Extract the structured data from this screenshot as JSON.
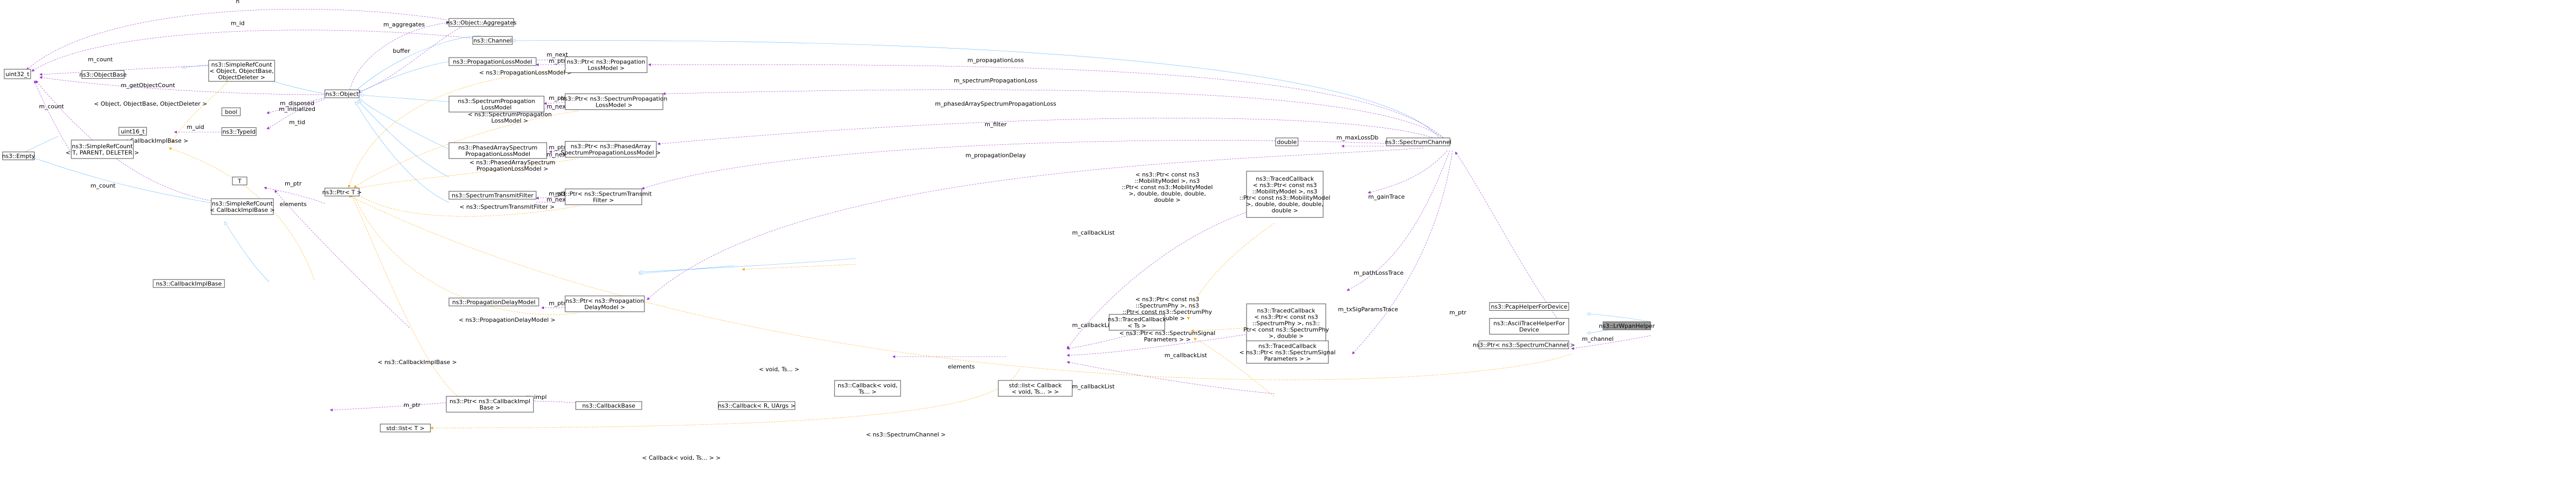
{
  "nodes": {
    "uint32": [
      "uint32_t"
    ],
    "objectbase": [
      "ns3::ObjectBase"
    ],
    "simplerefcount_obj": [
      "ns3::SimpleRefCount",
      "< Object, ObjectBase,",
      "ObjectDeleter >"
    ],
    "empty": [
      "ns3::Empty"
    ],
    "simplerefcount_t": [
      "ns3::SimpleRefCount",
      "< T, PARENT, DELETER >"
    ],
    "uint16": [
      "uint16_t"
    ],
    "simplerefcount_cb": [
      "ns3::SimpleRefCount",
      "< CallbackImplBase >"
    ],
    "t": [
      "T"
    ],
    "callbackimplbase": [
      "ns3::CallbackImplBase"
    ],
    "bool": [
      "bool"
    ],
    "typeid": [
      "ns3::TypeId"
    ],
    "object": [
      "ns3::Object"
    ],
    "ptr_t": [
      "ns3::Ptr< T >"
    ],
    "stdlist_t": [
      "std::list< T >"
    ],
    "aggregates": [
      "ns3::Object::Aggregates"
    ],
    "channel": [
      "ns3::Channel"
    ],
    "proplossmodel": [
      "ns3::PropagationLossModel"
    ],
    "specproplossmodel": [
      "ns3::SpectrumPropagation",
      "LossModel"
    ],
    "phasedarray": [
      "ns3::PhasedArraySpectrum",
      "PropagationLossModel"
    ],
    "spectx": [
      "ns3::SpectrumTransmitFilter"
    ],
    "propdelay": [
      "ns3::PropagationDelayModel"
    ],
    "ptr_cbimpl": [
      "ns3::Ptr< ns3::CallbackImpl",
      "Base >"
    ],
    "ptr_proploss": [
      "ns3::Ptr< ns3::Propagation",
      "LossModel >"
    ],
    "ptr_specprop": [
      "ns3::Ptr< ns3::SpectrumPropagation",
      "LossModel >"
    ],
    "ptr_phased": [
      "ns3::Ptr< ns3::PhasedArray",
      "SpectrumPropagationLossModel >"
    ],
    "ptr_spectx": [
      "ns3::Ptr< ns3::SpectrumTransmit",
      "Filter >"
    ],
    "ptr_propdelay": [
      "ns3::Ptr< ns3::Propagation",
      "DelayModel >"
    ],
    "callbackbase": [
      "ns3::CallbackBase"
    ],
    "callback_r": [
      "ns3::Callback< R, UArgs >"
    ],
    "callback_void": [
      "ns3::Callback< void,",
      "Ts... >"
    ],
    "stdlist_cb": [
      "std::list< Callback",
      "< void, Ts... > >"
    ],
    "tracedcallback": [
      "ns3::TracedCallback",
      "< Ts >"
    ],
    "tc_mobility": [
      "ns3::TracedCallback",
      "< ns3::Ptr< const ns3",
      "::MobilityModel >, ns3",
      "::Ptr< const ns3::MobilityModel",
      ">, double, double, double,",
      "double >"
    ],
    "tc_phy": [
      "ns3::TracedCallback",
      "< ns3::Ptr< const ns3",
      "::SpectrumPhy >, ns3::",
      "Ptr< const ns3::SpectrumPhy",
      ">, double >"
    ],
    "tc_signal": [
      "ns3::TracedCallback",
      "< ns3::Ptr< ns3::SpectrumSignal",
      "Parameters > >"
    ],
    "double": [
      "double"
    ],
    "spectrumchannel": [
      "ns3::SpectrumChannel"
    ],
    "pcaphelper": [
      "ns3::PcapHelperForDevice"
    ],
    "asciihelper": [
      "ns3::AsciiTraceHelperFor",
      "Device"
    ],
    "ptr_specchannel": [
      "ns3::Ptr< ns3::SpectrumChannel >"
    ],
    "wpanhelper": [
      "ns3::LrWpanHelper"
    ]
  },
  "edges": {
    "n": "n",
    "m_id": "m_id",
    "m_aggregates": "m_aggregates",
    "buffer": "buffer",
    "m_count_a": "m_count",
    "m_getObjectCount": "m_getObjectCount",
    "m_count_b": "m_count",
    "m_count_c": "m_count",
    "object_objectbase": "< Object, ObjectBase, ObjectDeleter >",
    "m_disposed": "m_disposed",
    "m_initialized": "m_initialized",
    "m_tid": "m_tid",
    "m_uid": "m_uid",
    "callbackimplbase_tmpl": "< CallbackImplBase >",
    "m_ptr_t": "m_ptr",
    "elements_t": "elements",
    "m_next_1": "m_next",
    "m_ptr_1": "m_ptr",
    "proploss_tmpl": "< ns3::PropagationLossModel >",
    "m_ptr_2": "m_ptr",
    "m_next_2": "m_next",
    "specprop_tmpl": "< ns3::SpectrumPropagation\nLossModel >",
    "m_ptr_3": "m_ptr",
    "m_next_3": "m_next",
    "phased_tmpl": "< ns3::PhasedArraySpectrum\nPropagationLossModel >",
    "m_ptr_4": "m_ptr",
    "m_next_4": "m_next",
    "spectx_tmpl": "< ns3::SpectrumTransmitFilter >",
    "m_ptr_5": "m_ptr",
    "propdelay_tmpl": "< ns3::PropagationDelayModel >",
    "cbimpl_tmpl": "< ns3::CallbackImplBase >",
    "m_ptr_6": "m_ptr",
    "m_impl": "m_impl",
    "void_ts": "< void, Ts... >",
    "elements_cb": "elements",
    "m_callbackList_1": "m_callbackList",
    "m_callbackList_2": "m_callbackList",
    "m_callbackList_3": "m_callbackList",
    "m_callbackList_4": "m_callbackList",
    "ts_tmpl": "< ns3::Ptr< const ns3\n::MobilityModel >, ns3\n::Ptr< const ns3::MobilityModel\n>, double, double, double,\ndouble >",
    "ts_tmpl2": "< ns3::Ptr< const ns3\n::SpectrumPhy >, ns3\n::Ptr< const ns3::SpectrumPhy\n>, double >",
    "ts_tmpl3": "< ns3::Ptr< ns3::SpectrumSignal\nParameters > >",
    "callback_void_tmpl": "< Callback< void, Ts... > >",
    "specchannel_tmpl": "< ns3::SpectrumChannel >",
    "m_propagationLoss": "m_propagationLoss",
    "m_spectrumPropagationLoss": "m_spectrumPropagationLoss",
    "m_phasedArraySpectrumPropagationLoss": "m_phasedArraySpectrumPropagationLoss",
    "m_filter": "m_filter",
    "m_maxLossDb": "m_maxLossDb",
    "m_propagationDelay": "m_propagationDelay",
    "m_gainTrace": "m_gainTrace",
    "m_pathLossTrace": "m_pathLossTrace",
    "m_txSigParamsTrace": "m_txSigParamsTrace",
    "m_ptr_7": "m_ptr",
    "m_channel": "m_channel"
  },
  "colors": {
    "inheritance": "#63b8ff",
    "usage": "#9a32cd",
    "template": "#ffa500",
    "highlight": "#999999"
  }
}
